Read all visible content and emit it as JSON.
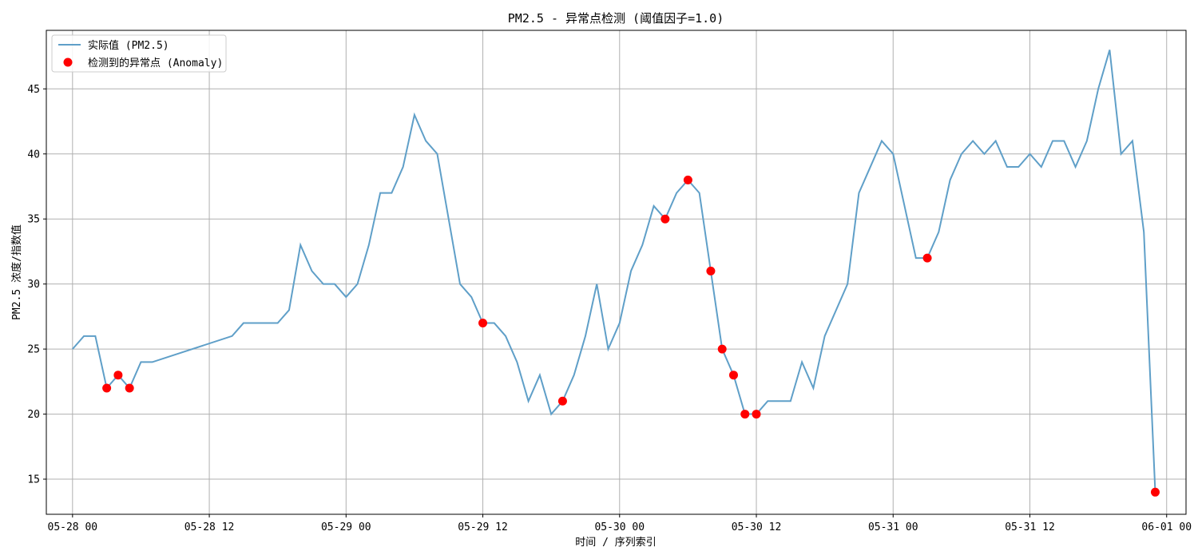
{
  "chart_data": {
    "type": "line",
    "title": "PM2.5 - 异常点检测 (阈值因子=1.0)",
    "xlabel": "时间 / 序列索引",
    "ylabel": "PM2.5 浓度/指数值",
    "x_unit": "hours since 05-28 00",
    "xlim": [
      -2.3,
      97.7
    ],
    "ylim": [
      12.3,
      49.5
    ],
    "x_ticks": [
      0,
      12,
      24,
      36,
      48,
      60,
      72,
      84,
      96
    ],
    "x_tick_labels": [
      "05-28 00",
      "05-28 12",
      "05-29 00",
      "05-29 12",
      "05-30 00",
      "05-30 12",
      "05-31 00",
      "05-31 12",
      "06-01 00"
    ],
    "y_ticks": [
      15,
      20,
      25,
      30,
      35,
      40,
      45
    ],
    "y_tick_labels": [
      "15",
      "20",
      "25",
      "30",
      "35",
      "40",
      "45"
    ],
    "grid": true,
    "legend_position": "top-left",
    "series": [
      {
        "name": "实际值 (PM2.5)",
        "kind": "line",
        "color": "#5f9fc8",
        "x": [
          0,
          1,
          2,
          3,
          4,
          5,
          6,
          7,
          14,
          15,
          16,
          17,
          18,
          19,
          20,
          21,
          22,
          23,
          24,
          25,
          26,
          27,
          28,
          29,
          30,
          31,
          32,
          33,
          34,
          35,
          36,
          37,
          38,
          39,
          40,
          41,
          42,
          43,
          44,
          45,
          46,
          47,
          48,
          49,
          50,
          51,
          52,
          53,
          54,
          55,
          56,
          57,
          58,
          59,
          60,
          61,
          62,
          63,
          64,
          65,
          66,
          67,
          68,
          69,
          70,
          71,
          72,
          73,
          74,
          75,
          76,
          77,
          78,
          79,
          80,
          81,
          82,
          83,
          84,
          85,
          86,
          87,
          88,
          89,
          90,
          91,
          92,
          93,
          94,
          95
        ],
        "y": [
          25,
          26,
          26,
          22,
          23,
          22,
          24,
          24,
          26,
          27,
          27,
          27,
          27,
          28,
          33,
          31,
          30,
          30,
          29,
          30,
          33,
          37,
          37,
          39,
          43,
          41,
          40,
          35,
          30,
          29,
          27,
          27,
          26,
          24,
          21,
          23,
          20,
          21,
          23,
          26,
          30,
          25,
          27,
          31,
          33,
          36,
          35,
          37,
          38,
          37,
          31,
          25,
          23,
          20,
          20,
          21,
          21,
          21,
          24,
          22,
          26,
          28,
          30,
          37,
          39,
          41,
          40,
          36,
          32,
          32,
          34,
          38,
          40,
          41,
          40,
          41,
          39,
          39,
          40,
          39,
          41,
          41,
          39,
          41,
          45,
          48,
          40,
          41,
          34,
          14
        ]
      },
      {
        "name": "检测到的异常点 (Anomaly)",
        "kind": "scatter",
        "color": "#ff0000",
        "x": [
          3,
          4,
          5,
          36,
          43,
          52,
          54,
          56,
          57,
          58,
          59,
          60,
          75,
          95
        ],
        "y": [
          22,
          23,
          22,
          27,
          21,
          35,
          38,
          31,
          25,
          23,
          20,
          20,
          32,
          14
        ]
      }
    ]
  }
}
